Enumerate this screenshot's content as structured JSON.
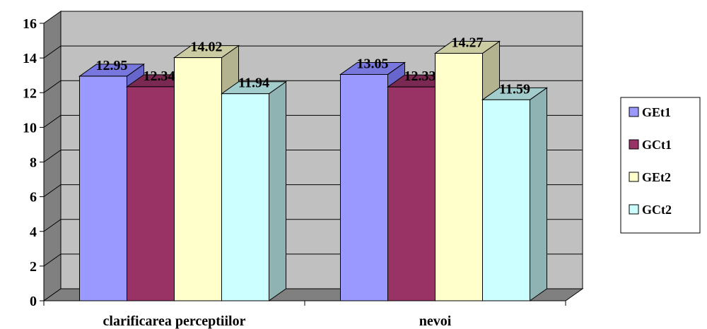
{
  "chart_data": {
    "type": "bar",
    "title": "",
    "xlabel": "",
    "ylabel": "",
    "categories": [
      "clarificarea perceptiilor",
      "nevoi"
    ],
    "series": [
      {
        "name": "GEt1",
        "values": [
          12.95,
          13.05
        ],
        "color": "#9999FF",
        "side": "#6666CC",
        "top": "#7777DD"
      },
      {
        "name": "GCt1",
        "values": [
          12.34,
          12.33
        ],
        "color": "#993366",
        "side": "#6B2447",
        "top": "#7A2952"
      },
      {
        "name": "GEt2",
        "values": [
          14.02,
          14.27
        ],
        "color": "#FFFFCC",
        "side": "#B3B38F",
        "top": "#CCCCA3"
      },
      {
        "name": "GCt2",
        "values": [
          11.94,
          11.59
        ],
        "color": "#CCFFFF",
        "side": "#8FB3B3",
        "top": "#A3CCCC"
      }
    ],
    "data_labels": [
      [
        "12.95",
        "13.05"
      ],
      [
        "12.34",
        "12.33"
      ],
      [
        "14.02",
        "14.27"
      ],
      [
        "11.94",
        "11.59"
      ]
    ],
    "ylim": [
      0,
      16
    ],
    "yticks": [
      "0",
      "2",
      "4",
      "6",
      "8",
      "10",
      "12",
      "14",
      "16"
    ],
    "grid": true,
    "legend_position": "right",
    "wall_color": "#C0C0C0",
    "floor_color": "#808080"
  }
}
